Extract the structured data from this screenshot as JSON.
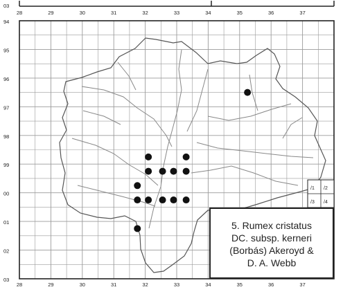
{
  "map": {
    "top_x_labels": [
      "28",
      "29",
      "30",
      "31",
      "32",
      "33",
      "34",
      "35",
      "36",
      "37"
    ],
    "bottom_x_labels": [
      "28",
      "29",
      "30",
      "31",
      "32",
      "33",
      "34",
      "35",
      "36",
      "37"
    ],
    "y_labels": [
      "03",
      "94",
      "95",
      "96",
      "97",
      "98",
      "99",
      "00",
      "01",
      "02",
      "03"
    ],
    "quadrant_labels": [
      "/1",
      "/2",
      "/3",
      "/4"
    ],
    "colors": {
      "grid": "#9a9a9a",
      "outline": "#555555",
      "river": "#8a8a8a",
      "dot": "#111111",
      "frame": "#222222"
    },
    "occurrences": [
      {
        "col": 35.25,
        "row": 96.5
      },
      {
        "col": 32.1,
        "row": 98.75
      },
      {
        "col": 33.3,
        "row": 98.75
      },
      {
        "col": 32.1,
        "row": 99.25
      },
      {
        "col": 32.55,
        "row": 99.25
      },
      {
        "col": 32.9,
        "row": 99.25
      },
      {
        "col": 33.3,
        "row": 99.25
      },
      {
        "col": 31.75,
        "row": 99.75
      },
      {
        "col": 31.75,
        "row": 100.25
      },
      {
        "col": 32.1,
        "row": 100.25
      },
      {
        "col": 32.55,
        "row": 100.25
      },
      {
        "col": 32.9,
        "row": 100.25
      },
      {
        "col": 33.3,
        "row": 100.25
      },
      {
        "col": 31.75,
        "row": 101.25
      }
    ]
  },
  "legend": {
    "lines": [
      "5. Rumex cristatus",
      "DC. subsp. kerneri",
      "(Borbás) Akeroyd &",
      "D. A. Webb"
    ]
  }
}
